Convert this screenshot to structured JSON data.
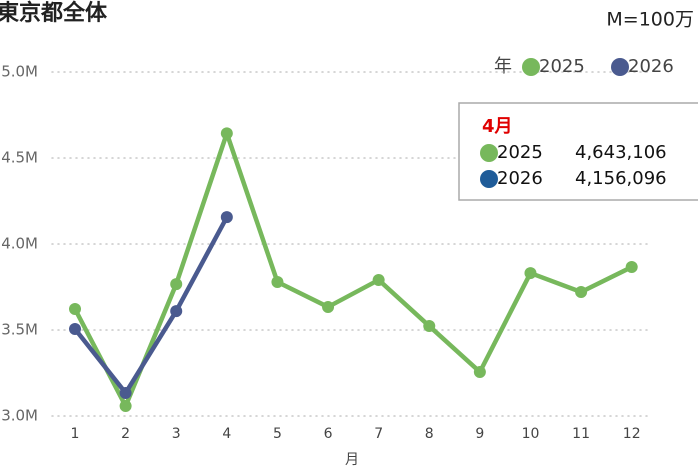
{
  "chart_data": {
    "type": "line",
    "title": "東京都全体",
    "subtitle": "M=100万",
    "legend_title": "年",
    "legend_position": "top-right",
    "x_label": "月",
    "categories": [
      "1",
      "2",
      "3",
      "4",
      "5",
      "6",
      "7",
      "8",
      "9",
      "10",
      "11",
      "12"
    ],
    "series": [
      {
        "name": "2025",
        "color": "#77b85c",
        "values": [
          3622000,
          3058000,
          3767000,
          4643106,
          3779000,
          3634000,
          3791000,
          3523000,
          3256000,
          3831000,
          3721000,
          3866000
        ]
      },
      {
        "name": "2026",
        "color": "#4a5a8f",
        "values": [
          3506000,
          3134000,
          3610000,
          4156096,
          null,
          null,
          null,
          null,
          null,
          null,
          null,
          null
        ]
      }
    ],
    "ylim": [
      3000000,
      5000000
    ],
    "yticks": [
      {
        "value": 3000000,
        "label": "3.0M"
      },
      {
        "value": 3500000,
        "label": "3.5M"
      },
      {
        "value": 4000000,
        "label": "4.0M"
      },
      {
        "value": 4500000,
        "label": "4.5M"
      },
      {
        "value": 5000000,
        "label": "5.0M"
      }
    ],
    "grid": true,
    "tooltip": {
      "title": "4月",
      "items": [
        {
          "name": "2025",
          "color": "#77b85c",
          "label": "4,643,106"
        },
        {
          "name": "2026",
          "color": "#1f5c99",
          "label": "4,156,096"
        }
      ]
    }
  }
}
